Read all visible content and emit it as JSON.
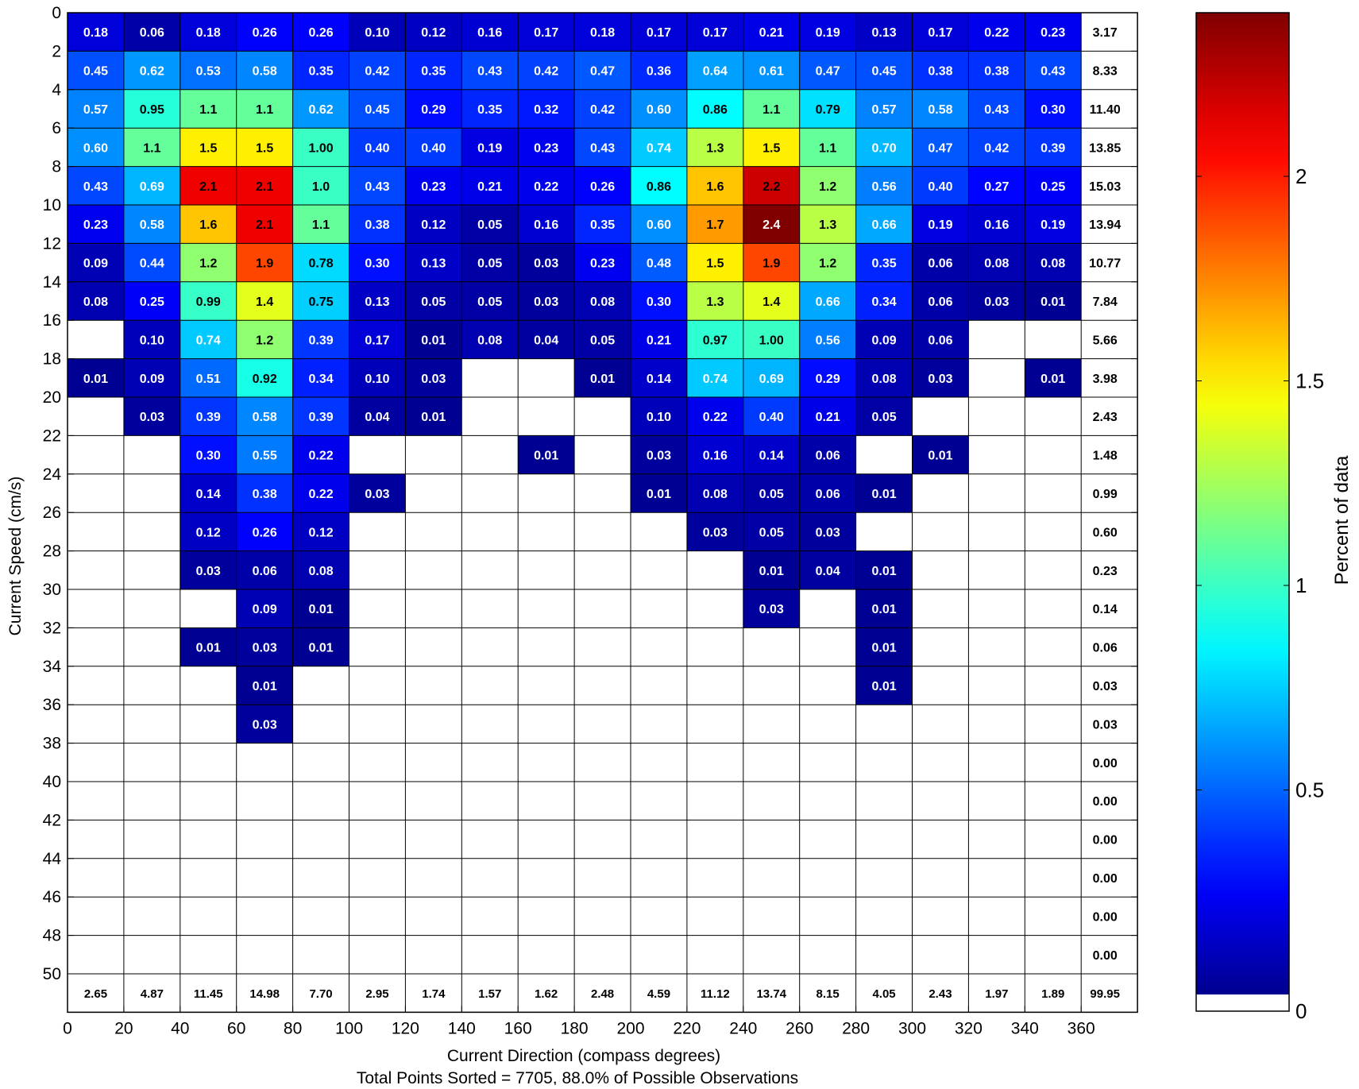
{
  "chart_data": {
    "type": "heatmap",
    "title": "",
    "xlabel": "Current Direction (compass degrees)",
    "ylabel": "Current Speed (cm/s)",
    "footer": "Total Points Sorted = 7705, 88.0% of Possible Observations",
    "colorbar_label": "Percent of data",
    "colorbar_ticks": [
      "0",
      "0.5",
      "1",
      "1.5",
      "2"
    ],
    "colorbar_range": [
      0,
      2.4
    ],
    "colormap": "jet",
    "colormap_stops": [
      "#00008f",
      "#0000ff",
      "#00ffff",
      "#ffff00",
      "#ff0000",
      "#800000"
    ],
    "x_ticks": [
      "0",
      "20",
      "40",
      "60",
      "80",
      "100",
      "120",
      "140",
      "160",
      "180",
      "200",
      "220",
      "240",
      "260",
      "280",
      "300",
      "320",
      "340",
      "360"
    ],
    "y_ticks": [
      "0",
      "2",
      "4",
      "6",
      "8",
      "10",
      "12",
      "14",
      "16",
      "18",
      "20",
      "22",
      "24",
      "26",
      "28",
      "30",
      "32",
      "34",
      "36",
      "38",
      "40",
      "42",
      "44",
      "46",
      "48",
      "50"
    ],
    "xlim": [
      0,
      360
    ],
    "ylim": [
      50,
      0
    ],
    "direction_bins": [
      [
        0,
        20
      ],
      [
        20,
        40
      ],
      [
        40,
        60
      ],
      [
        60,
        80
      ],
      [
        80,
        100
      ],
      [
        100,
        120
      ],
      [
        120,
        140
      ],
      [
        140,
        160
      ],
      [
        160,
        180
      ],
      [
        180,
        200
      ],
      [
        200,
        220
      ],
      [
        220,
        240
      ],
      [
        240,
        260
      ],
      [
        260,
        280
      ],
      [
        280,
        300
      ],
      [
        300,
        320
      ],
      [
        320,
        340
      ],
      [
        340,
        360
      ]
    ],
    "speed_bins": [
      [
        0,
        2
      ],
      [
        2,
        4
      ],
      [
        4,
        6
      ],
      [
        6,
        8
      ],
      [
        8,
        10
      ],
      [
        10,
        12
      ],
      [
        12,
        14
      ],
      [
        14,
        16
      ],
      [
        16,
        18
      ],
      [
        18,
        20
      ],
      [
        20,
        22
      ],
      [
        22,
        24
      ],
      [
        24,
        26
      ],
      [
        26,
        28
      ],
      [
        28,
        30
      ],
      [
        30,
        32
      ],
      [
        32,
        34
      ],
      [
        34,
        36
      ],
      [
        36,
        38
      ],
      [
        38,
        40
      ],
      [
        40,
        42
      ],
      [
        42,
        44
      ],
      [
        44,
        46
      ],
      [
        46,
        48
      ],
      [
        48,
        50
      ]
    ],
    "cells": [
      [
        "0.18",
        "0.06",
        "0.18",
        "0.26",
        "0.26",
        "0.10",
        "0.12",
        "0.16",
        "0.17",
        "0.18",
        "0.17",
        "0.17",
        "0.21",
        "0.19",
        "0.13",
        "0.17",
        "0.22",
        "0.23"
      ],
      [
        "0.45",
        "0.62",
        "0.53",
        "0.58",
        "0.35",
        "0.42",
        "0.35",
        "0.43",
        "0.42",
        "0.47",
        "0.36",
        "0.64",
        "0.61",
        "0.47",
        "0.45",
        "0.38",
        "0.38",
        "0.43"
      ],
      [
        "0.57",
        "0.95",
        "1.1",
        "1.1",
        "0.62",
        "0.45",
        "0.29",
        "0.35",
        "0.32",
        "0.42",
        "0.60",
        "0.86",
        "1.1",
        "0.79",
        "0.57",
        "0.58",
        "0.43",
        "0.30"
      ],
      [
        "0.60",
        "1.1",
        "1.5",
        "1.5",
        "1.00",
        "0.40",
        "0.40",
        "0.19",
        "0.23",
        "0.43",
        "0.74",
        "1.3",
        "1.5",
        "1.1",
        "0.70",
        "0.47",
        "0.42",
        "0.39"
      ],
      [
        "0.43",
        "0.69",
        "2.1",
        "2.1",
        "1.0",
        "0.43",
        "0.23",
        "0.21",
        "0.22",
        "0.26",
        "0.86",
        "1.6",
        "2.2",
        "1.2",
        "0.56",
        "0.40",
        "0.27",
        "0.25"
      ],
      [
        "0.23",
        "0.58",
        "1.6",
        "2.1",
        "1.1",
        "0.38",
        "0.12",
        "0.05",
        "0.16",
        "0.35",
        "0.60",
        "1.7",
        "2.4",
        "1.3",
        "0.66",
        "0.19",
        "0.16",
        "0.19"
      ],
      [
        "0.09",
        "0.44",
        "1.2",
        "1.9",
        "0.78",
        "0.30",
        "0.13",
        "0.05",
        "0.03",
        "0.23",
        "0.48",
        "1.5",
        "1.9",
        "1.2",
        "0.35",
        "0.06",
        "0.08",
        "0.08"
      ],
      [
        "0.08",
        "0.25",
        "0.99",
        "1.4",
        "0.75",
        "0.13",
        "0.05",
        "0.05",
        "0.03",
        "0.08",
        "0.30",
        "1.3",
        "1.4",
        "0.66",
        "0.34",
        "0.06",
        "0.03",
        "0.01"
      ],
      [
        null,
        "0.10",
        "0.74",
        "1.2",
        "0.39",
        "0.17",
        "0.01",
        "0.08",
        "0.04",
        "0.05",
        "0.21",
        "0.97",
        "1.00",
        "0.56",
        "0.09",
        "0.06",
        null,
        null
      ],
      [
        "0.01",
        "0.09",
        "0.51",
        "0.92",
        "0.34",
        "0.10",
        "0.03",
        null,
        null,
        "0.01",
        "0.14",
        "0.74",
        "0.69",
        "0.29",
        "0.08",
        "0.03",
        null,
        "0.01"
      ],
      [
        null,
        "0.03",
        "0.39",
        "0.58",
        "0.39",
        "0.04",
        "0.01",
        null,
        null,
        null,
        "0.10",
        "0.22",
        "0.40",
        "0.21",
        "0.05",
        null,
        null,
        null
      ],
      [
        null,
        null,
        "0.30",
        "0.55",
        "0.22",
        null,
        null,
        null,
        "0.01",
        null,
        "0.03",
        "0.16",
        "0.14",
        "0.06",
        null,
        "0.01",
        null,
        null
      ],
      [
        null,
        null,
        "0.14",
        "0.38",
        "0.22",
        "0.03",
        null,
        null,
        null,
        null,
        "0.01",
        "0.08",
        "0.05",
        "0.06",
        "0.01",
        null,
        null,
        null
      ],
      [
        null,
        null,
        "0.12",
        "0.26",
        "0.12",
        null,
        null,
        null,
        null,
        null,
        null,
        "0.03",
        "0.05",
        "0.03",
        null,
        null,
        null,
        null
      ],
      [
        null,
        null,
        "0.03",
        "0.06",
        "0.08",
        null,
        null,
        null,
        null,
        null,
        null,
        null,
        "0.01",
        "0.04",
        "0.01",
        null,
        null,
        null
      ],
      [
        null,
        null,
        null,
        "0.09",
        "0.01",
        null,
        null,
        null,
        null,
        null,
        null,
        null,
        "0.03",
        null,
        "0.01",
        null,
        null,
        null
      ],
      [
        null,
        null,
        "0.01",
        "0.03",
        "0.01",
        null,
        null,
        null,
        null,
        null,
        null,
        null,
        null,
        null,
        "0.01",
        null,
        null,
        null
      ],
      [
        null,
        null,
        null,
        "0.01",
        null,
        null,
        null,
        null,
        null,
        null,
        null,
        null,
        null,
        null,
        "0.01",
        null,
        null,
        null
      ],
      [
        null,
        null,
        null,
        "0.03",
        null,
        null,
        null,
        null,
        null,
        null,
        null,
        null,
        null,
        null,
        null,
        null,
        null,
        null
      ],
      [
        null,
        null,
        null,
        null,
        null,
        null,
        null,
        null,
        null,
        null,
        null,
        null,
        null,
        null,
        null,
        null,
        null,
        null
      ],
      [
        null,
        null,
        null,
        null,
        null,
        null,
        null,
        null,
        null,
        null,
        null,
        null,
        null,
        null,
        null,
        null,
        null,
        null
      ],
      [
        null,
        null,
        null,
        null,
        null,
        null,
        null,
        null,
        null,
        null,
        null,
        null,
        null,
        null,
        null,
        null,
        null,
        null
      ],
      [
        null,
        null,
        null,
        null,
        null,
        null,
        null,
        null,
        null,
        null,
        null,
        null,
        null,
        null,
        null,
        null,
        null,
        null
      ],
      [
        null,
        null,
        null,
        null,
        null,
        null,
        null,
        null,
        null,
        null,
        null,
        null,
        null,
        null,
        null,
        null,
        null,
        null
      ],
      [
        null,
        null,
        null,
        null,
        null,
        null,
        null,
        null,
        null,
        null,
        null,
        null,
        null,
        null,
        null,
        null,
        null,
        null
      ]
    ],
    "row_totals": [
      "3.17",
      "8.33",
      "11.40",
      "13.85",
      "15.03",
      "13.94",
      "10.77",
      "7.84",
      "5.66",
      "3.98",
      "2.43",
      "1.48",
      "0.99",
      "0.60",
      "0.23",
      "0.14",
      "0.06",
      "0.03",
      "0.03",
      "0.00",
      "0.00",
      "0.00",
      "0.00",
      "0.00",
      "0.00"
    ],
    "column_totals": [
      "2.65",
      "4.87",
      "11.45",
      "14.98",
      "7.70",
      "2.95",
      "1.74",
      "1.57",
      "1.62",
      "2.48",
      "4.59",
      "11.12",
      "13.74",
      "8.15",
      "4.05",
      "2.43",
      "1.97",
      "1.89"
    ],
    "grand_total": "99.95"
  }
}
